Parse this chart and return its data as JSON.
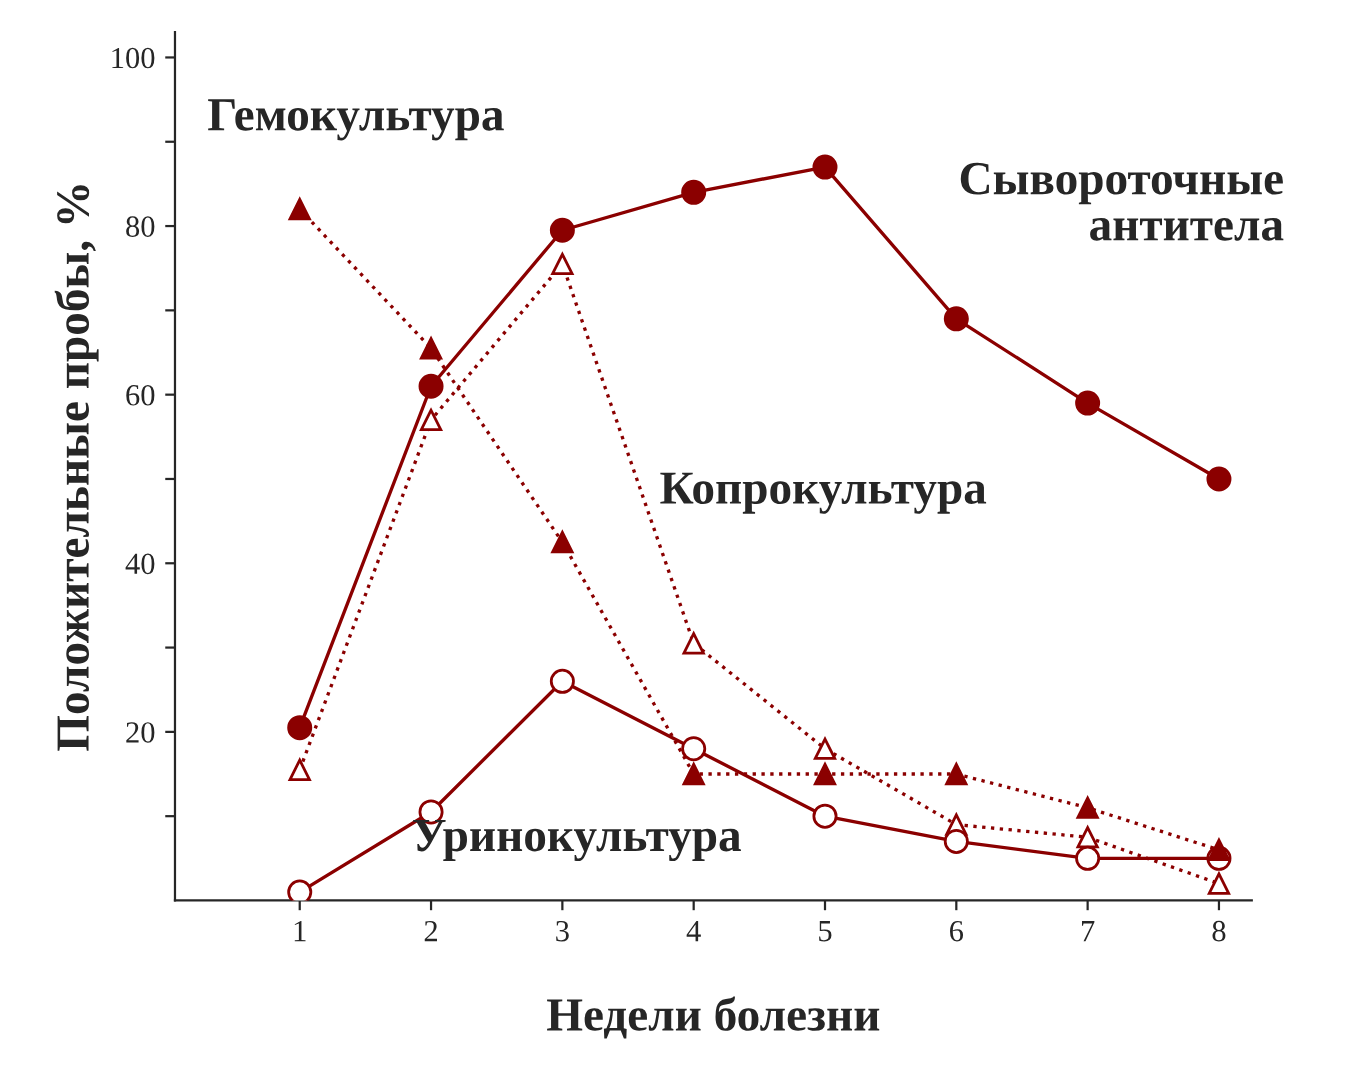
{
  "chart_data": {
    "type": "line",
    "xlabel": "Недели болезни",
    "ylabel": "Положительные пробы, %",
    "x": [
      1,
      2,
      3,
      4,
      5,
      6,
      7,
      8
    ],
    "xlim": [
      0.05,
      8.25
    ],
    "xticks": [
      1,
      2,
      3,
      4,
      5,
      6,
      7,
      8
    ],
    "ylim": [
      0,
      103
    ],
    "yticks": [
      {
        "value": 10,
        "label": null
      },
      20,
      {
        "value": 30,
        "label": null
      },
      40,
      {
        "value": 50,
        "label": null
      },
      60,
      {
        "value": 70,
        "label": null
      },
      80,
      {
        "value": 90,
        "label": null
      },
      100
    ],
    "grid": false,
    "legend": false,
    "series": [
      {
        "name": "Сывороточные\nантитела",
        "color": "#8b0000",
        "marker": "circle",
        "line_style": "solid",
        "values": [
          20.5,
          61,
          79.5,
          84,
          87,
          69,
          59,
          50
        ]
      },
      {
        "name": "Гемокультура",
        "color": "#8b0000",
        "marker": "triangle",
        "line_style": "dotted",
        "values": [
          82,
          65.5,
          42.5,
          15,
          15,
          15,
          11,
          6
        ]
      },
      {
        "name": "Копрокультура",
        "color": "#8b0000",
        "marker": "triangle",
        "line_style": "dotted",
        "values": [
          15.5,
          57,
          75.5,
          30.5,
          18,
          9,
          7.5,
          2
        ]
      },
      {
        "name": "Уринокультура",
        "color": "#8b0000",
        "marker": "circle",
        "line_style": "solid",
        "values": [
          1,
          10.5,
          26,
          18,
          10,
          7,
          5,
          5
        ]
      }
    ]
  }
}
